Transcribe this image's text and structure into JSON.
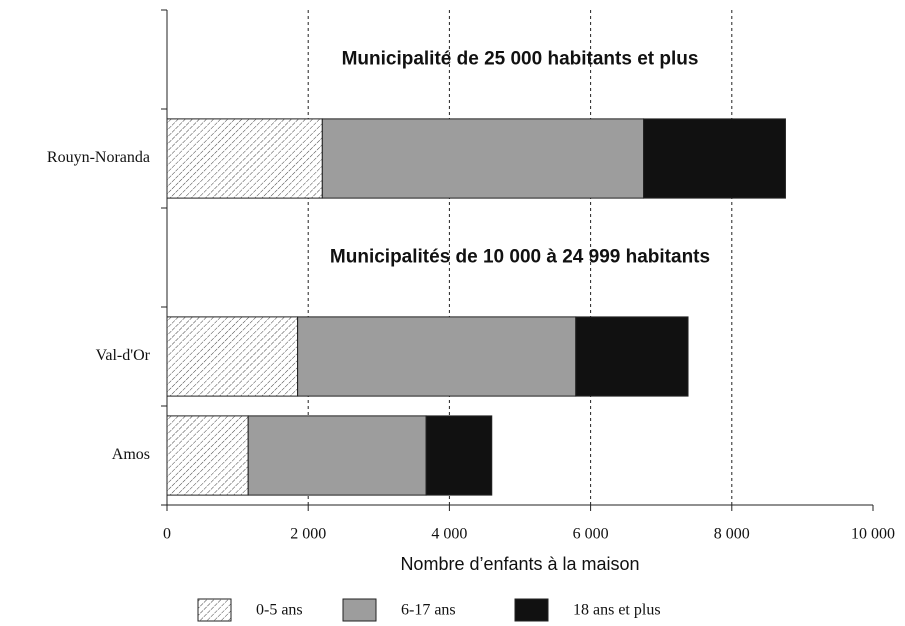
{
  "chart_data": {
    "type": "stacked-barh",
    "categories": [
      null,
      "Rouyn-Noranda",
      null,
      "Val-d'Or",
      "Amos"
    ],
    "annotations": [
      "Municipalité de 25 000 habitants et plus",
      "Municipalités de 10 000 à 24 999 habitants"
    ],
    "series": [
      {
        "name": "0-5 ans",
        "color": "#ffffff",
        "pattern": "diagonal-hatch",
        "values": [
          null,
          2200,
          null,
          1850,
          1150
        ]
      },
      {
        "name": "6-17 ans",
        "color": "#9d9d9d",
        "values": [
          null,
          4550,
          null,
          3940,
          2520
        ]
      },
      {
        "name": "18 ans et plus",
        "color": "#111111",
        "values": [
          null,
          2010,
          null,
          1590,
          930
        ]
      }
    ],
    "xlabel": "Nombre d’enfants à la maison",
    "xlim": [
      0,
      10000
    ],
    "xticks": [
      0,
      {
        "value": 2000,
        "label": "2 000"
      },
      {
        "value": 4000,
        "label": "4 000"
      },
      {
        "value": 6000,
        "label": "6 000"
      },
      {
        "value": 8000,
        "label": "8 000"
      },
      {
        "value": 10000,
        "label": "10 000"
      }
    ],
    "grid": true,
    "legend": "bottom"
  }
}
